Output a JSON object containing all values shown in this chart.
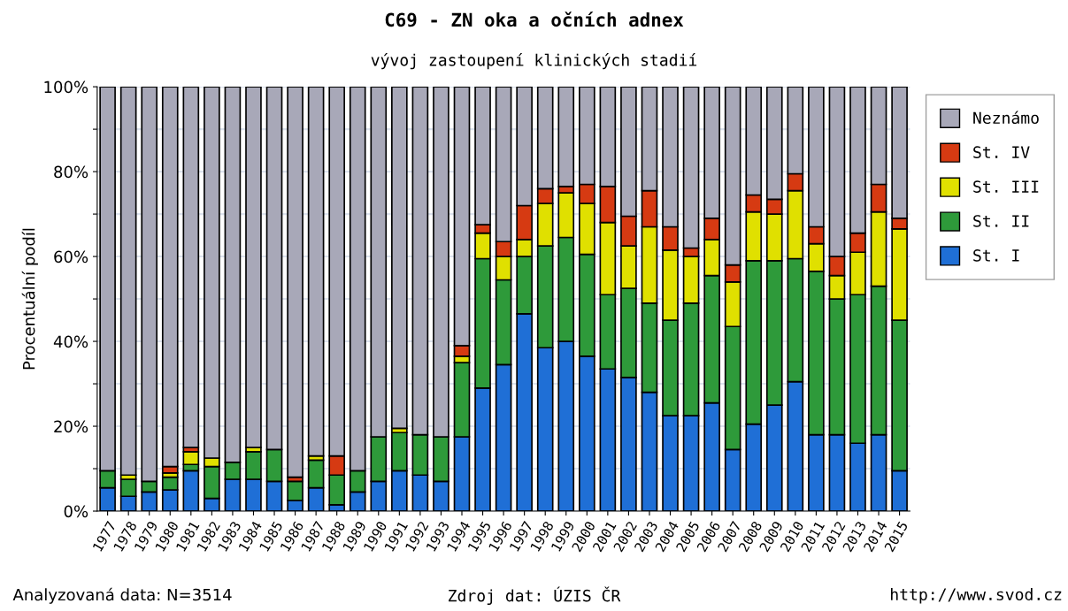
{
  "chart_data": {
    "type": "bar",
    "stacked": true,
    "title": "C69 - ZN oka a očních adnex",
    "subtitle": "vývoj zastoupení klinických stadií",
    "ylabel": "Procentuální podíl",
    "categories": [
      "1977",
      "1978",
      "1979",
      "1980",
      "1981",
      "1982",
      "1983",
      "1984",
      "1985",
      "1986",
      "1987",
      "1988",
      "1989",
      "1990",
      "1991",
      "1992",
      "1993",
      "1994",
      "1995",
      "1996",
      "1997",
      "1998",
      "1999",
      "2000",
      "2001",
      "2002",
      "2003",
      "2004",
      "2005",
      "2006",
      "2007",
      "2008",
      "2009",
      "2010",
      "2011",
      "2012",
      "2013",
      "2014",
      "2015"
    ],
    "series": [
      {
        "name": "St. I",
        "color": "#1f6fd6",
        "values": [
          5.5,
          3.5,
          4.5,
          5,
          9.5,
          3,
          7.5,
          7.5,
          7,
          2.5,
          5.5,
          1.5,
          4.5,
          7,
          9.5,
          8.5,
          7,
          17.5,
          29,
          34.5,
          46.5,
          38.5,
          40,
          36.5,
          33.5,
          31.5,
          28,
          22.5,
          22.5,
          25.5,
          14.5,
          20.5,
          25,
          30.5,
          18,
          18,
          16,
          18,
          9.5
        ]
      },
      {
        "name": "St. II",
        "color": "#2e9a3a",
        "values": [
          4,
          4,
          2.5,
          3,
          1.5,
          7.5,
          4,
          6.5,
          7.5,
          4.5,
          6.5,
          7,
          5,
          10.5,
          9,
          9.5,
          10.5,
          17.5,
          30.5,
          20,
          13.5,
          24,
          24.5,
          24,
          17.5,
          21,
          21,
          22.5,
          26.5,
          30,
          29,
          38.5,
          34,
          29,
          38.5,
          32,
          35,
          35,
          35.5
        ]
      },
      {
        "name": "St. III",
        "color": "#e0e000",
        "values": [
          0,
          1,
          0,
          1,
          3,
          2,
          0,
          1,
          0,
          0,
          1,
          0,
          0,
          0,
          1,
          0,
          0,
          1.5,
          6,
          5.5,
          4,
          10,
          10.5,
          12,
          17,
          10,
          18,
          16.5,
          11,
          8.5,
          10.5,
          11.5,
          11,
          16,
          6.5,
          5.5,
          10,
          17.5,
          21.5
        ]
      },
      {
        "name": "St. IV",
        "color": "#d63a12",
        "values": [
          0,
          0,
          0,
          1.5,
          1,
          0,
          0,
          0,
          0,
          1,
          0,
          4.5,
          0,
          0,
          0,
          0,
          0,
          2.5,
          2,
          3.5,
          8,
          3.5,
          1.5,
          4.5,
          8.5,
          7,
          8.5,
          5.5,
          2,
          5,
          4,
          4,
          3.5,
          4,
          4,
          4.5,
          4.5,
          6.5,
          2.5
        ]
      },
      {
        "name": "Neznámo",
        "color": "#a8a8b8",
        "values": [
          90.5,
          91.5,
          93,
          89.5,
          85,
          87.5,
          88.5,
          85,
          85.5,
          92,
          87,
          87,
          90.5,
          82.5,
          80.5,
          82,
          82.5,
          61,
          32.5,
          36.5,
          28,
          24,
          23.5,
          23,
          23.5,
          30.5,
          24.5,
          33,
          38,
          31,
          42,
          25.5,
          26.5,
          20.5,
          33,
          40,
          34.5,
          23,
          31
        ]
      }
    ],
    "ylim": [
      0,
      100
    ],
    "yticks": [
      {
        "value": 0,
        "label": "0%"
      },
      {
        "value": 10,
        "label": null
      },
      {
        "value": 20,
        "label": "20%"
      },
      {
        "value": 30,
        "label": null
      },
      {
        "value": 40,
        "label": "40%"
      },
      {
        "value": 50,
        "label": null
      },
      {
        "value": 60,
        "label": "60%"
      },
      {
        "value": 70,
        "label": null
      },
      {
        "value": 80,
        "label": "80%"
      },
      {
        "value": 90,
        "label": null
      },
      {
        "value": 100,
        "label": "100%"
      }
    ],
    "grid": "y",
    "legend": "top right",
    "annotations": [
      "Analyzovaná data: N=3514",
      "Zdroj dat: ÚZIS ČR",
      "http://www.svod.cz"
    ]
  }
}
